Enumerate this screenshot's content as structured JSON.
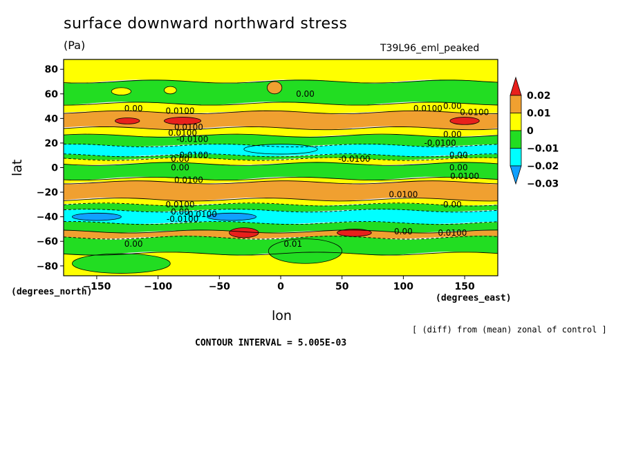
{
  "chart_data": {
    "type": "heatmap",
    "title": "surface downward northward stress",
    "units": "(Pa)",
    "dataset": "T39L96_eml_peaked",
    "xlabel": "lon",
    "ylabel": "lat",
    "x_units_label": "(degrees_east)",
    "y_units_label": "(degrees_north)",
    "note": "[ (diff) from (mean) zonal of control ]",
    "contour_interval": "CONTOUR INTERVAL = 5.005E-03",
    "xlim": [
      -177,
      177
    ],
    "ylim": [
      -88,
      88
    ],
    "x_ticks": [
      -150,
      -100,
      -50,
      0,
      50,
      100,
      150
    ],
    "y_ticks": [
      80,
      60,
      40,
      20,
      0,
      -20,
      -40,
      -60,
      -80
    ],
    "legend": {
      "placement": "right",
      "labels": [
        "0.02",
        "0.01",
        "0",
        "−0.01",
        "−0.02",
        "−0.03"
      ],
      "colors": [
        "#e8201c",
        "#f0a030",
        "#ffff00",
        "#22dd22",
        "#00ffff",
        "#10a0ff"
      ]
    },
    "colors": {
      "above_0.015": "#e8201c",
      "0.005_to_0.015": "#f0a030",
      "-0.005_to_0.005": "#ffff00",
      "-0.015_to_-0.005": "#22dd22",
      "-0.025_to_-0.015": "#00ffff",
      "below_-0.025": "#10a0ff"
    },
    "bands": [
      {
        "lat": [
          70,
          88
        ],
        "color": "#ffff00"
      },
      {
        "lat": [
          52,
          70
        ],
        "color": "#22dd22"
      },
      {
        "lat": [
          45,
          52
        ],
        "color": "#ffff00"
      },
      {
        "lat": [
          32,
          45
        ],
        "color": "#f0a030"
      },
      {
        "lat": [
          26,
          32
        ],
        "color": "#ffff00"
      },
      {
        "lat": [
          18,
          26
        ],
        "color": "#22dd22"
      },
      {
        "lat": [
          10,
          18
        ],
        "color": "#00ffff"
      },
      {
        "lat": [
          7,
          10
        ],
        "color": "#22dd22"
      },
      {
        "lat": [
          3,
          7
        ],
        "color": "#ffff00"
      },
      {
        "lat": [
          -9,
          3
        ],
        "color": "#22dd22"
      },
      {
        "lat": [
          -12,
          -9
        ],
        "color": "#ffff00"
      },
      {
        "lat": [
          -26,
          -12
        ],
        "color": "#f0a030"
      },
      {
        "lat": [
          -30,
          -26
        ],
        "color": "#ffff00"
      },
      {
        "lat": [
          -35,
          -30
        ],
        "color": "#22dd22"
      },
      {
        "lat": [
          -45,
          -35
        ],
        "color": "#00ffff"
      },
      {
        "lat": [
          -52,
          -45
        ],
        "color": "#22dd22"
      },
      {
        "lat": [
          -57,
          -52
        ],
        "color": "#f0a030"
      },
      {
        "lat": [
          -70,
          -57
        ],
        "color": "#22dd22"
      },
      {
        "lat": [
          -88,
          -70
        ],
        "color": "#ffff00"
      }
    ],
    "blobs": [
      {
        "lon": -80,
        "lat": 38,
        "rlon": 15,
        "rlat": 3,
        "color": "#e8201c"
      },
      {
        "lon": -125,
        "lat": 38,
        "rlon": 10,
        "rlat": 2.5,
        "color": "#e8201c"
      },
      {
        "lon": 150,
        "lat": 38,
        "rlon": 12,
        "rlat": 3,
        "color": "#e8201c"
      },
      {
        "lon": -30,
        "lat": -53,
        "rlon": 12,
        "rlat": 4,
        "color": "#e8201c"
      },
      {
        "lon": 60,
        "lat": -53,
        "rlon": 14,
        "rlat": 3,
        "color": "#e8201c"
      },
      {
        "lon": 0,
        "lat": 15,
        "rlon": 30,
        "rlat": 4,
        "color": "#00ffff"
      },
      {
        "lon": -40,
        "lat": -40,
        "rlon": 20,
        "rlat": 3,
        "color": "#10a0ff"
      },
      {
        "lon": -150,
        "lat": -40,
        "rlon": 20,
        "rlat": 3,
        "color": "#10a0ff"
      },
      {
        "lon": -5,
        "lat": 65,
        "rlon": 6,
        "rlat": 5,
        "color": "#f0a030"
      },
      {
        "lon": -90,
        "lat": 63,
        "rlon": 5,
        "rlat": 3,
        "color": "#ffff00"
      },
      {
        "lon": -130,
        "lat": 62,
        "rlon": 8,
        "rlat": 3,
        "color": "#ffff00"
      },
      {
        "lon": 20,
        "lat": -68,
        "rlon": 30,
        "rlat": 10,
        "color": "#22dd22"
      },
      {
        "lon": -130,
        "lat": -78,
        "rlon": 40,
        "rlat": 8,
        "color": "#22dd22"
      }
    ],
    "contour_labels": [
      {
        "text": "0.00",
        "lon": 20,
        "lat": 60
      },
      {
        "text": "0.00",
        "lon": -120,
        "lat": 48
      },
      {
        "text": "0.0100",
        "lon": -82,
        "lat": 46
      },
      {
        "text": "0.0100",
        "lon": 120,
        "lat": 48
      },
      {
        "text": "0.0100",
        "lon": 158,
        "lat": 45
      },
      {
        "text": "0.00",
        "lon": 140,
        "lat": 50
      },
      {
        "text": "0.0100",
        "lon": -75,
        "lat": 33
      },
      {
        "text": "0.0100",
        "lon": -80,
        "lat": 28
      },
      {
        "text": "-0.0100",
        "lon": -72,
        "lat": 23
      },
      {
        "text": "0.00",
        "lon": 140,
        "lat": 27
      },
      {
        "text": "-0.0100",
        "lon": 130,
        "lat": 20
      },
      {
        "text": "-0.0100",
        "lon": -72,
        "lat": 10
      },
      {
        "text": "0.00",
        "lon": 145,
        "lat": 10
      },
      {
        "text": "-0.0100",
        "lon": 60,
        "lat": 7
      },
      {
        "text": "0.00",
        "lon": -82,
        "lat": 7
      },
      {
        "text": "0.00",
        "lon": -82,
        "lat": 0
      },
      {
        "text": "0.00",
        "lon": 145,
        "lat": 0
      },
      {
        "text": "0.0100",
        "lon": -75,
        "lat": -10
      },
      {
        "text": "0.0100",
        "lon": 150,
        "lat": -7
      },
      {
        "text": "0.0100",
        "lon": 100,
        "lat": -22
      },
      {
        "text": "0.0100",
        "lon": -82,
        "lat": -30
      },
      {
        "text": "0.00",
        "lon": 140,
        "lat": -30
      },
      {
        "text": "0.00",
        "lon": -82,
        "lat": -36
      },
      {
        "text": "-0.0100",
        "lon": -80,
        "lat": -42
      },
      {
        "text": "-0.0100",
        "lon": -65,
        "lat": -38
      },
      {
        "text": "0.00",
        "lon": 100,
        "lat": -52
      },
      {
        "text": "0.0100",
        "lon": 140,
        "lat": -53
      },
      {
        "text": "0.00",
        "lon": -120,
        "lat": -62
      },
      {
        "text": "0.01",
        "lon": 10,
        "lat": -62
      }
    ]
  }
}
